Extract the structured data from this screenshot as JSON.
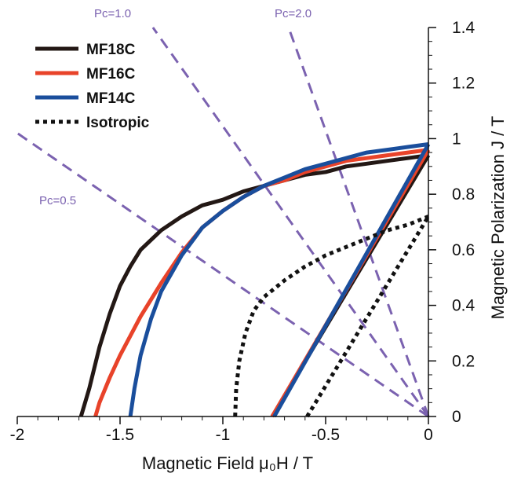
{
  "chart_data": {
    "type": "line",
    "title": "",
    "xlabel": "Magnetic Field μ₀H / T",
    "ylabel": "Magnetic Polarization J / T",
    "xlim": [
      -2,
      0
    ],
    "ylim": [
      0,
      1.4
    ],
    "x_ticks": [
      -2,
      -1.5,
      -1,
      -0.5,
      0
    ],
    "x_tick_labels": [
      "-2",
      "-1.5",
      "-1",
      "-0.5",
      "0"
    ],
    "y_ticks": [
      0,
      0.2,
      0.4,
      0.6,
      0.8,
      1,
      1.2,
      1.4
    ],
    "y_tick_labels": [
      "0",
      "0.2",
      "0.4",
      "0.6",
      "0.8",
      "1",
      "1.2",
      "1.4"
    ],
    "grid": false,
    "legend_position": "top-left",
    "legend": [
      "MF18C",
      "MF16C",
      "MF14C",
      "Isotropic"
    ],
    "series": [
      {
        "name": "MF18C",
        "color": "#231815",
        "dash": "solid",
        "J_curve": [
          [
            -1.69,
            0
          ],
          [
            -1.65,
            0.1
          ],
          [
            -1.6,
            0.25
          ],
          [
            -1.55,
            0.37
          ],
          [
            -1.5,
            0.47
          ],
          [
            -1.45,
            0.54
          ],
          [
            -1.4,
            0.6
          ],
          [
            -1.3,
            0.67
          ],
          [
            -1.2,
            0.72
          ],
          [
            -1.1,
            0.76
          ],
          [
            -1.0,
            0.78
          ],
          [
            -0.9,
            0.81
          ],
          [
            -0.8,
            0.83
          ],
          [
            -0.7,
            0.85
          ],
          [
            -0.6,
            0.87
          ],
          [
            -0.5,
            0.88
          ],
          [
            -0.4,
            0.9
          ],
          [
            -0.3,
            0.91
          ],
          [
            -0.2,
            0.92
          ],
          [
            -0.1,
            0.93
          ],
          [
            0,
            0.94
          ]
        ],
        "B_line": [
          [
            -0.76,
            0
          ],
          [
            0,
            0.94
          ]
        ]
      },
      {
        "name": "MF16C",
        "color": "#e8432a",
        "dash": "solid",
        "J_curve": [
          [
            -1.62,
            0
          ],
          [
            -1.6,
            0.05
          ],
          [
            -1.55,
            0.14
          ],
          [
            -1.5,
            0.22
          ],
          [
            -1.4,
            0.36
          ],
          [
            -1.3,
            0.48
          ],
          [
            -1.2,
            0.59
          ],
          [
            -1.1,
            0.68
          ],
          [
            -1.0,
            0.74
          ],
          [
            -0.9,
            0.79
          ],
          [
            -0.8,
            0.83
          ],
          [
            -0.7,
            0.85
          ],
          [
            -0.6,
            0.88
          ],
          [
            -0.5,
            0.9
          ],
          [
            -0.4,
            0.92
          ],
          [
            -0.3,
            0.93
          ],
          [
            -0.2,
            0.94
          ],
          [
            -0.1,
            0.95
          ],
          [
            0,
            0.96
          ]
        ],
        "B_line": [
          [
            -0.76,
            0
          ],
          [
            0,
            0.96
          ]
        ]
      },
      {
        "name": "MF14C",
        "color": "#1a4e9c",
        "dash": "solid",
        "J_curve": [
          [
            -1.45,
            0
          ],
          [
            -1.43,
            0.1
          ],
          [
            -1.4,
            0.22
          ],
          [
            -1.35,
            0.35
          ],
          [
            -1.3,
            0.45
          ],
          [
            -1.2,
            0.58
          ],
          [
            -1.1,
            0.68
          ],
          [
            -1.0,
            0.74
          ],
          [
            -0.9,
            0.79
          ],
          [
            -0.8,
            0.83
          ],
          [
            -0.7,
            0.86
          ],
          [
            -0.6,
            0.89
          ],
          [
            -0.5,
            0.91
          ],
          [
            -0.4,
            0.93
          ],
          [
            -0.3,
            0.95
          ],
          [
            -0.2,
            0.96
          ],
          [
            -0.1,
            0.97
          ],
          [
            0,
            0.98
          ]
        ],
        "B_line": [
          [
            -0.75,
            0
          ],
          [
            0,
            0.98
          ]
        ]
      },
      {
        "name": "Isotropic",
        "color": "#111111",
        "dash": "dotted",
        "J_curve": [
          [
            -0.94,
            0
          ],
          [
            -0.935,
            0.1
          ],
          [
            -0.92,
            0.2
          ],
          [
            -0.89,
            0.3
          ],
          [
            -0.85,
            0.38
          ],
          [
            -0.8,
            0.43
          ],
          [
            -0.7,
            0.49
          ],
          [
            -0.6,
            0.54
          ],
          [
            -0.5,
            0.58
          ],
          [
            -0.4,
            0.61
          ],
          [
            -0.3,
            0.64
          ],
          [
            -0.2,
            0.67
          ],
          [
            -0.1,
            0.69
          ],
          [
            0,
            0.72
          ]
        ],
        "B_line": [
          [
            -0.59,
            0
          ],
          [
            0,
            0.72
          ]
        ]
      }
    ],
    "permeance_lines": {
      "color": "#7b62b0",
      "dash": "dashed",
      "lines": [
        {
          "label": "Pc=0.5",
          "points": [
            [
              0,
              0
            ],
            [
              -2,
              1.02
            ]
          ]
        },
        {
          "label": "Pc=1.0",
          "points": [
            [
              0,
              0
            ],
            [
              -1.34,
              1.4
            ]
          ]
        },
        {
          "label": "Pc=2.0",
          "points": [
            [
              0,
              0
            ],
            [
              -0.68,
              1.4
            ]
          ]
        }
      ]
    }
  }
}
